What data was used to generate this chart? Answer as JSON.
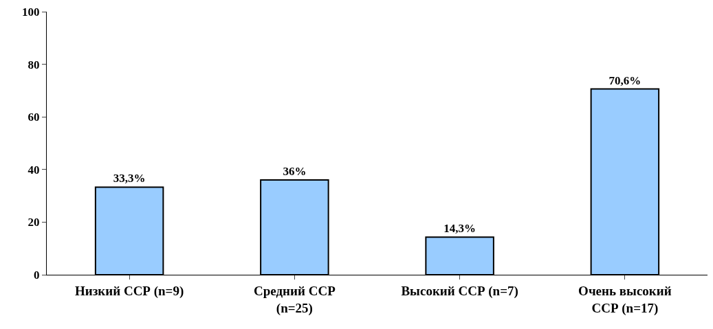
{
  "chart_data": {
    "type": "bar",
    "categories": [
      "Низкий ССР (n=9)",
      "Средний ССР\n(n=25)",
      "Высокий ССР (n=7)",
      "Очень высокий\nССР (n=17)"
    ],
    "values": [
      33.3,
      36,
      14.3,
      70.6
    ],
    "value_labels": [
      "33,3%",
      "36%",
      "14,3%",
      "70,6%"
    ],
    "color": "#99ccff",
    "ylim": [
      0,
      100
    ],
    "yticks": [
      0,
      20,
      40,
      60,
      80,
      100
    ]
  }
}
